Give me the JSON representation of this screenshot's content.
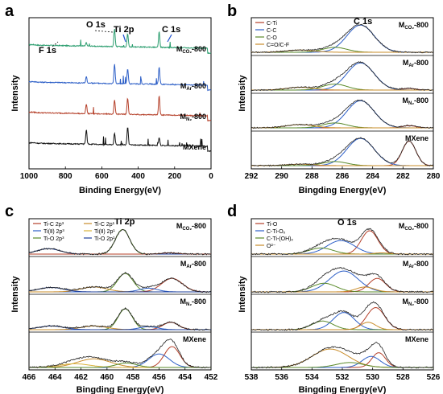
{
  "colors": {
    "green": "#2a9d6e",
    "blue": "#2d5fc7",
    "red": "#b5402a",
    "black": "#111111",
    "orange": "#c98c2a",
    "navy": "#1f3f9a",
    "olive": "#5a8a2a",
    "yellow": "#d9b23a"
  },
  "chart_data": [
    {
      "panel": "a",
      "type": "line",
      "xlabel": "Binding Energy(eV)",
      "ylabel": "Intensity",
      "xlim": [
        1000,
        0
      ],
      "x_ticks": [
        "1000",
        "800",
        "600",
        "400",
        "200",
        "0"
      ],
      "annotations": [
        "O 1s",
        "Ti 2p",
        "C 1s",
        "F 1s"
      ],
      "series": [
        {
          "name": "M CO₂-800",
          "base": "M",
          "sub": "CO₂",
          "post": "-800",
          "color": "green",
          "peaks": [
            [
              685,
              0.1
            ],
            [
              530,
              0.55
            ],
            [
              458,
              0.4
            ],
            [
              285,
              0.5
            ]
          ]
        },
        {
          "name": "M Ar-800",
          "base": "M",
          "sub": "Ar",
          "post": "-800",
          "color": "blue",
          "peaks": [
            [
              685,
              0.2
            ],
            [
              530,
              0.6
            ],
            [
              458,
              0.45
            ],
            [
              285,
              0.55
            ]
          ]
        },
        {
          "name": "M N₂-800",
          "base": "M",
          "sub": "N₂",
          "post": "-800",
          "color": "red",
          "peaks": [
            [
              685,
              0.3
            ],
            [
              530,
              0.45
            ],
            [
              458,
              0.5
            ],
            [
              285,
              0.6
            ]
          ]
        },
        {
          "name": "MXene",
          "base": "MXene",
          "sub": "",
          "post": "",
          "color": "black",
          "peaks": [
            [
              685,
              0.45
            ],
            [
              530,
              0.35
            ],
            [
              458,
              0.55
            ],
            [
              285,
              0.25
            ]
          ]
        }
      ]
    },
    {
      "panel": "b",
      "type": "line",
      "xlabel": "Bingding Energy(eV)",
      "ylabel": "Intensity",
      "xlim": [
        292,
        280
      ],
      "x_ticks": [
        "292",
        "290",
        "288",
        "286",
        "284",
        "282",
        "280"
      ],
      "peak_label": "C 1s",
      "legend": [
        {
          "name": "C-Ti",
          "color": "red"
        },
        {
          "name": "C-C",
          "color": "blue"
        },
        {
          "name": "C-O",
          "color": "olive"
        },
        {
          "name": "C=O/C-F",
          "color": "orange"
        }
      ],
      "components": {
        "C-Ti": 281.6,
        "C-C": 284.8,
        "C-O": 286.5,
        "C=O/C-F": 288.8
      },
      "subpanels": [
        {
          "name": "M CO₂-800",
          "base": "M",
          "sub": "CO₂",
          "post": "-800",
          "amps": {
            "C-Ti": 0.0,
            "C-C": 1.0,
            "C-O": 0.18,
            "C=O/C-F": 0.08
          }
        },
        {
          "name": "M Ar-800",
          "base": "M",
          "sub": "Ar",
          "post": "-800",
          "amps": {
            "C-Ti": 0.06,
            "C-C": 1.0,
            "C-O": 0.22,
            "C=O/C-F": 0.1
          }
        },
        {
          "name": "M N₂-800",
          "base": "M",
          "sub": "N₂",
          "post": "-800",
          "amps": {
            "C-Ti": 0.08,
            "C-C": 1.0,
            "C-O": 0.18,
            "C=O/C-F": 0.12
          }
        },
        {
          "name": "MXene",
          "base": "MXene",
          "sub": "",
          "post": "",
          "amps": {
            "C-Ti": 0.9,
            "C-C": 1.0,
            "C-O": 0.15,
            "C=O/C-F": 0.05
          }
        }
      ]
    },
    {
      "panel": "c",
      "type": "line",
      "xlabel": "Bingding Energy(eV)",
      "ylabel": "Intensity",
      "xlim": [
        466,
        452
      ],
      "x_ticks": [
        "466",
        "464",
        "462",
        "460",
        "458",
        "456",
        "454",
        "452"
      ],
      "peak_label": "Ti 2p",
      "legend": [
        {
          "name": "Ti-C 2p³",
          "color": "red"
        },
        {
          "name": "Ti-C 2p¹",
          "color": "orange"
        },
        {
          "name": "Ti(Ⅱ) 2p³",
          "color": "blue"
        },
        {
          "name": "Ti(Ⅱ) 2p¹",
          "color": "yellow"
        },
        {
          "name": "Ti-O 2p³",
          "color": "olive"
        },
        {
          "name": "Ti-O 2p¹",
          "color": "navy"
        }
      ],
      "subpanels": [
        {
          "name": "M CO₂-800",
          "base": "M",
          "sub": "CO₂",
          "post": "-800"
        },
        {
          "name": "M Ar-800",
          "base": "M",
          "sub": "Ar",
          "post": "-800"
        },
        {
          "name": "M N₂-800",
          "base": "M",
          "sub": "N₂",
          "post": "-800"
        },
        {
          "name": "MXene",
          "base": "MXene",
          "sub": "",
          "post": ""
        }
      ]
    },
    {
      "panel": "d",
      "type": "line",
      "xlabel": "Bingding Energy(eV)",
      "ylabel": "Intensity",
      "xlim": [
        538,
        526
      ],
      "x_ticks": [
        "538",
        "536",
        "534",
        "532",
        "530",
        "528",
        "526"
      ],
      "peak_label": "O 1s",
      "legend": [
        {
          "name": "Ti-O",
          "color": "red"
        },
        {
          "name": "C-Ti-Oₓ",
          "color": "blue"
        },
        {
          "name": "C-Ti-(OH)ₓ",
          "color": "olive"
        },
        {
          "name": "O²⁻",
          "color": "orange"
        }
      ],
      "subpanels": [
        {
          "name": "M CO₂-800",
          "base": "M",
          "sub": "CO₂",
          "post": "-800"
        },
        {
          "name": "M Ar-800",
          "base": "M",
          "sub": "Ar",
          "post": "-800"
        },
        {
          "name": "M N₂-800",
          "base": "M",
          "sub": "N₂",
          "post": "-800"
        },
        {
          "name": "MXene",
          "base": "MXene",
          "sub": "",
          "post": ""
        }
      ]
    }
  ]
}
